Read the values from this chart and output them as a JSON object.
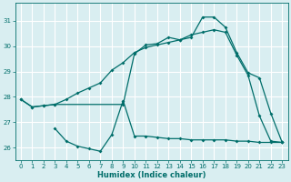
{
  "xlabel": "Humidex (Indice chaleur)",
  "bg_color": "#d9eef1",
  "grid_color": "#c0dde0",
  "line_color": "#006e6a",
  "xlim": [
    -0.5,
    23.5
  ],
  "ylim": [
    25.5,
    31.7
  ],
  "yticks": [
    26,
    27,
    28,
    29,
    30,
    31
  ],
  "xticks": [
    0,
    1,
    2,
    3,
    4,
    5,
    6,
    7,
    8,
    9,
    10,
    11,
    12,
    13,
    14,
    15,
    16,
    17,
    18,
    19,
    20,
    21,
    22,
    23
  ],
  "line1_x": [
    0,
    1,
    2,
    3,
    4,
    5,
    6,
    7,
    8,
    9,
    10,
    11,
    12,
    13,
    14,
    15,
    16,
    17,
    18,
    19,
    20,
    21,
    22,
    23
  ],
  "line1_y": [
    27.9,
    27.6,
    27.65,
    27.7,
    27.9,
    28.15,
    28.35,
    28.55,
    29.05,
    29.35,
    29.75,
    29.95,
    30.05,
    30.15,
    30.25,
    30.45,
    30.55,
    30.65,
    30.55,
    29.65,
    28.85,
    27.25,
    26.25,
    26.2
  ],
  "line2_x": [
    0,
    1,
    2,
    3,
    9,
    10,
    11,
    12,
    13,
    14,
    15,
    16,
    17,
    18,
    19,
    20,
    21,
    22,
    23
  ],
  "line2_y": [
    27.9,
    27.6,
    27.65,
    27.7,
    27.7,
    29.7,
    30.05,
    30.1,
    30.35,
    30.25,
    30.35,
    31.15,
    31.15,
    30.75,
    29.75,
    28.95,
    28.75,
    27.35,
    26.2
  ],
  "line3_x": [
    3,
    4,
    5,
    6,
    7,
    8,
    9,
    10,
    11,
    12,
    13,
    14,
    15,
    16,
    17,
    18,
    19,
    20,
    21,
    22,
    23
  ],
  "line3_y": [
    26.75,
    26.25,
    26.05,
    25.95,
    25.85,
    26.5,
    27.85,
    26.45,
    26.45,
    26.4,
    26.35,
    26.35,
    26.3,
    26.3,
    26.3,
    26.3,
    26.25,
    26.25,
    26.2,
    26.2,
    26.2
  ]
}
